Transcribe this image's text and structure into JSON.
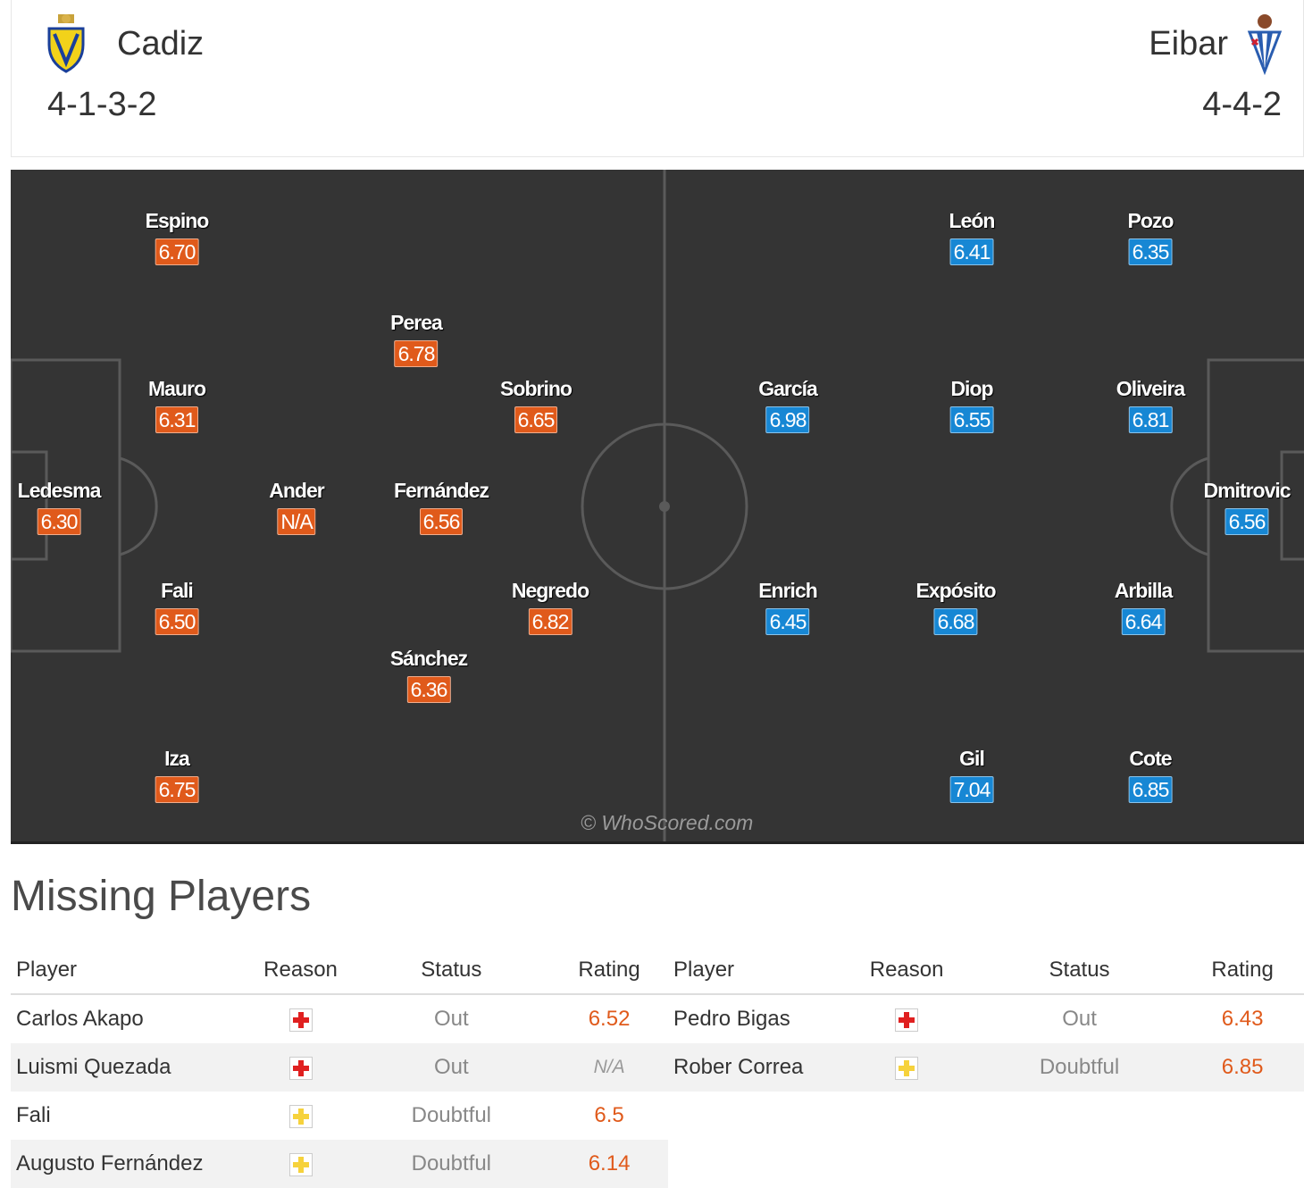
{
  "header": {
    "home": {
      "name": "Cadiz",
      "formation": "4-1-3-2"
    },
    "away": {
      "name": "Eibar",
      "formation": "4-4-2"
    }
  },
  "pitch": {
    "watermark": "© WhoScored.com",
    "home_players": [
      {
        "name": "Espino",
        "rating": "6.70"
      },
      {
        "name": "Perea",
        "rating": "6.78"
      },
      {
        "name": "Mauro",
        "rating": "6.31"
      },
      {
        "name": "Sobrino",
        "rating": "6.65"
      },
      {
        "name": "Ledesma",
        "rating": "6.30"
      },
      {
        "name": "Ander",
        "rating": "N/A"
      },
      {
        "name": "Fernández",
        "rating": "6.56"
      },
      {
        "name": "Fali",
        "rating": "6.50"
      },
      {
        "name": "Negredo",
        "rating": "6.82"
      },
      {
        "name": "Sánchez",
        "rating": "6.36"
      },
      {
        "name": "Iza",
        "rating": "6.75"
      }
    ],
    "away_players": [
      {
        "name": "León",
        "rating": "6.41"
      },
      {
        "name": "Pozo",
        "rating": "6.35"
      },
      {
        "name": "García",
        "rating": "6.98"
      },
      {
        "name": "Diop",
        "rating": "6.55"
      },
      {
        "name": "Oliveira",
        "rating": "6.81"
      },
      {
        "name": "Dmitrovic",
        "rating": "6.56"
      },
      {
        "name": "Enrich",
        "rating": "6.45"
      },
      {
        "name": "Expósito",
        "rating": "6.68"
      },
      {
        "name": "Arbilla",
        "rating": "6.64"
      },
      {
        "name": "Gil",
        "rating": "7.04"
      },
      {
        "name": "Cote",
        "rating": "6.85"
      }
    ]
  },
  "missing": {
    "title": "Missing Players",
    "columns": {
      "player": "Player",
      "reason": "Reason",
      "status": "Status",
      "rating": "Rating"
    },
    "home": [
      {
        "player": "Carlos Akapo",
        "reason_icon": "injury-icon",
        "status": "Out",
        "rating": "6.52"
      },
      {
        "player": "Luismi Quezada",
        "reason_icon": "injury-icon",
        "status": "Out",
        "rating": "N/A"
      },
      {
        "player": "Fali",
        "reason_icon": "doubtful-icon",
        "status": "Doubtful",
        "rating": "6.5"
      },
      {
        "player": "Augusto Fernández",
        "reason_icon": "doubtful-icon",
        "status": "Doubtful",
        "rating": "6.14"
      }
    ],
    "away": [
      {
        "player": "Pedro Bigas",
        "reason_icon": "injury-icon",
        "status": "Out",
        "rating": "6.43"
      },
      {
        "player": "Rober Correa",
        "reason_icon": "doubtful-icon",
        "status": "Doubtful",
        "rating": "6.85"
      }
    ]
  },
  "colors": {
    "home_rating": "#e05a1b",
    "away_rating": "#1787d4",
    "pitch": "#343434",
    "injury": "#e02020",
    "doubtful": "#f6d23c"
  }
}
